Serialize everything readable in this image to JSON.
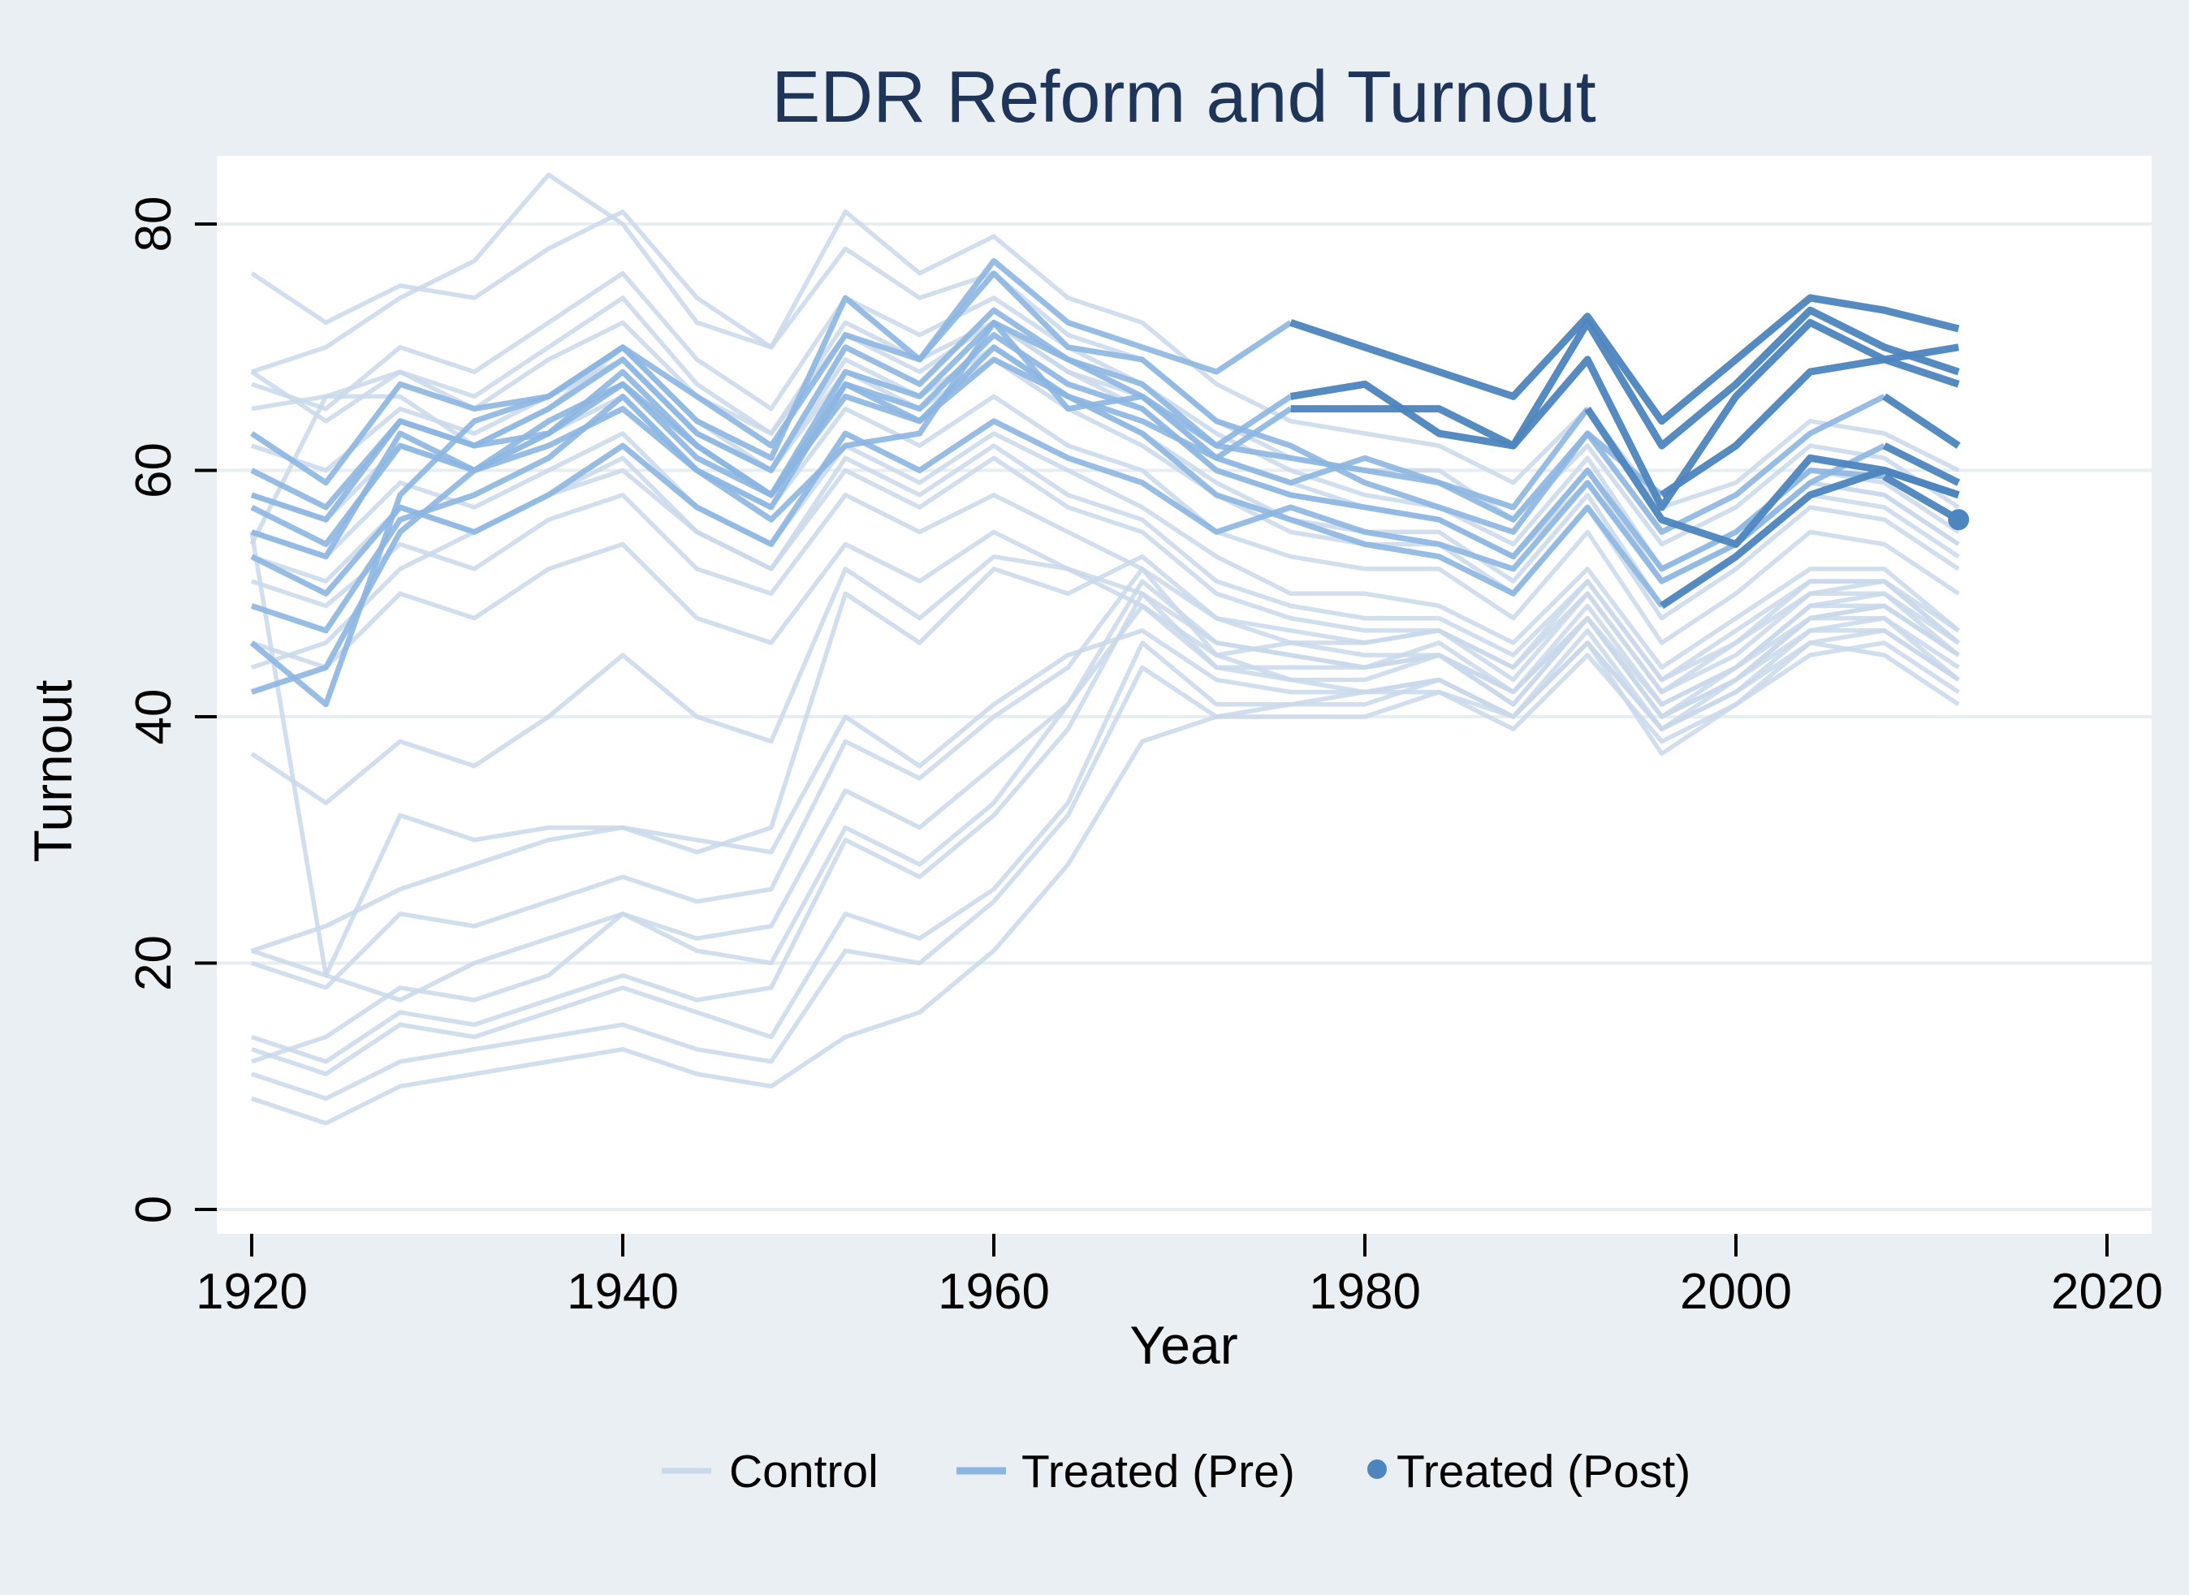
{
  "title": "EDR Reform and Turnout",
  "colors": {
    "background": "#e9eff3",
    "plot_background": "#ffffff",
    "gridline": "#e7eef2",
    "title_text": "#1f3459",
    "axis_text": "#000000",
    "control": "#c9d8ea",
    "treated_pre": "#8cb6e1",
    "treated_post": "#4d85be"
  },
  "legend": {
    "items": [
      {
        "label": "Control",
        "marker": "line",
        "color_key": "control"
      },
      {
        "label": "Treated (Pre)",
        "marker": "line",
        "color_key": "treated_pre"
      },
      {
        "label": "Treated (Post)",
        "marker": "dot",
        "color_key": "treated_post"
      }
    ]
  },
  "chart_data": {
    "type": "line",
    "title": "EDR Reform and Turnout",
    "xlabel": "Year",
    "ylabel": "Turnout",
    "xlim": [
      1918,
      2022
    ],
    "ylim": [
      0,
      85
    ],
    "xticks": [
      1920,
      1940,
      1960,
      1980,
      2000,
      2020
    ],
    "yticks": [
      0,
      20,
      40,
      60,
      80
    ],
    "grid": "horizontal",
    "legend_position": "bottom",
    "x": [
      1920,
      1924,
      1928,
      1932,
      1936,
      1940,
      1944,
      1948,
      1952,
      1956,
      1960,
      1964,
      1968,
      1972,
      1976,
      1980,
      1984,
      1988,
      1992,
      1996,
      2000,
      2004,
      2008,
      2012
    ],
    "series": [
      {
        "id": "control-01",
        "group": "control",
        "values": [
          68,
          70,
          74,
          77,
          84,
          80,
          72,
          70,
          81,
          76,
          79,
          74,
          72,
          67,
          64,
          63,
          62,
          59,
          65,
          57,
          59,
          64,
          63,
          60
        ]
      },
      {
        "id": "control-02",
        "group": "control",
        "values": [
          76,
          72,
          75,
          74,
          78,
          81,
          74,
          70,
          78,
          74,
          76,
          71,
          69,
          64,
          61,
          60,
          60,
          56,
          62,
          54,
          57,
          62,
          61,
          57
        ]
      },
      {
        "id": "control-03",
        "group": "control",
        "values": [
          67,
          65,
          70,
          68,
          72,
          76,
          69,
          65,
          74,
          71,
          74,
          70,
          67,
          63,
          60,
          58,
          57,
          54,
          61,
          52,
          55,
          60,
          59,
          55
        ]
      },
      {
        "id": "control-04",
        "group": "control",
        "values": [
          65,
          66,
          68,
          65,
          69,
          72,
          66,
          63,
          71,
          68,
          72,
          68,
          65,
          60,
          58,
          57,
          56,
          53,
          59,
          51,
          54,
          59,
          58,
          54
        ]
      },
      {
        "id": "control-05",
        "group": "control",
        "values": [
          62,
          60,
          65,
          63,
          66,
          69,
          63,
          60,
          68,
          65,
          69,
          65,
          62,
          58,
          55,
          54,
          54,
          50,
          57,
          48,
          52,
          57,
          56,
          52
        ]
      },
      {
        "id": "control-06",
        "group": "control",
        "values": [
          58,
          56,
          62,
          60,
          63,
          66,
          60,
          57,
          65,
          62,
          66,
          62,
          60,
          55,
          53,
          52,
          52,
          48,
          55,
          46,
          50,
          55,
          54,
          50
        ]
      },
      {
        "id": "control-07",
        "group": "control",
        "values": [
          55,
          53,
          59,
          57,
          60,
          63,
          57,
          54,
          62,
          59,
          63,
          60,
          57,
          53,
          50,
          50,
          49,
          46,
          52,
          44,
          48,
          52,
          52,
          47
        ]
      },
      {
        "id": "control-08",
        "group": "control",
        "values": [
          53,
          51,
          57,
          55,
          58,
          60,
          55,
          52,
          60,
          57,
          61,
          57,
          55,
          50,
          48,
          47,
          47,
          44,
          50,
          42,
          46,
          50,
          50,
          45
        ]
      },
      {
        "id": "control-09",
        "group": "control",
        "values": [
          51,
          49,
          54,
          52,
          56,
          58,
          52,
          50,
          58,
          55,
          58,
          55,
          52,
          48,
          46,
          45,
          45,
          42,
          48,
          40,
          44,
          48,
          48,
          43
        ]
      },
      {
        "id": "control-10",
        "group": "control",
        "values": [
          46,
          44,
          50,
          48,
          52,
          54,
          48,
          46,
          54,
          51,
          55,
          52,
          49,
          45,
          43,
          42,
          42,
          40,
          46,
          37,
          41,
          46,
          45,
          41
        ]
      },
      {
        "id": "control-11",
        "group": "control",
        "values": [
          37,
          33,
          38,
          36,
          40,
          45,
          40,
          38,
          52,
          48,
          53,
          52,
          50,
          46,
          45,
          44,
          45,
          42,
          48,
          41,
          44,
          49,
          49,
          45
        ]
      },
      {
        "id": "control-12",
        "group": "control",
        "values": [
          21,
          19,
          32,
          30,
          31,
          31,
          30,
          29,
          40,
          36,
          41,
          45,
          47,
          43,
          42,
          42,
          43,
          40,
          46,
          39,
          42,
          47,
          47,
          43
        ]
      },
      {
        "id": "control-13",
        "group": "control",
        "values": [
          20,
          18,
          24,
          23,
          25,
          27,
          25,
          26,
          38,
          35,
          40,
          44,
          52,
          45,
          46,
          46,
          47,
          43,
          50,
          42,
          45,
          50,
          51,
          47
        ]
      },
      {
        "id": "control-14",
        "group": "control",
        "values": [
          14,
          12,
          16,
          15,
          17,
          19,
          17,
          18,
          30,
          27,
          32,
          39,
          50,
          44,
          43,
          43,
          45,
          41,
          48,
          40,
          43,
          48,
          49,
          45
        ]
      },
      {
        "id": "control-15",
        "group": "control",
        "values": [
          13,
          11,
          15,
          14,
          16,
          18,
          16,
          14,
          24,
          22,
          26,
          33,
          46,
          41,
          41,
          41,
          43,
          40,
          46,
          39,
          42,
          46,
          47,
          43
        ]
      },
      {
        "id": "control-16",
        "group": "control",
        "values": [
          11,
          9,
          12,
          13,
          14,
          15,
          13,
          12,
          21,
          20,
          25,
          32,
          44,
          40,
          40,
          40,
          42,
          39,
          45,
          38,
          41,
          45,
          46,
          42
        ]
      },
      {
        "id": "control-17",
        "group": "control",
        "values": [
          9,
          7,
          10,
          11,
          12,
          13,
          11,
          10,
          14,
          16,
          21,
          28,
          38,
          40,
          41,
          42,
          43,
          40,
          47,
          39,
          43,
          47,
          48,
          44
        ]
      },
      {
        "id": "control-18",
        "group": "control",
        "values": [
          21,
          23,
          26,
          28,
          30,
          31,
          29,
          31,
          50,
          46,
          52,
          50,
          53,
          48,
          47,
          46,
          47,
          44,
          51,
          43,
          46,
          51,
          51,
          46
        ]
      },
      {
        "id": "control-19",
        "group": "control",
        "values": [
          12,
          14,
          18,
          17,
          19,
          24,
          21,
          20,
          31,
          28,
          33,
          41,
          51,
          46,
          45,
          44,
          46,
          42,
          49,
          41,
          44,
          49,
          50,
          46
        ]
      },
      {
        "id": "control-20",
        "group": "control",
        "values": [
          54,
          66,
          66,
          62,
          65,
          70,
          64,
          60,
          69,
          66,
          70,
          66,
          63,
          59,
          56,
          55,
          55,
          51,
          58,
          49,
          53,
          58,
          57,
          53
        ]
      },
      {
        "id": "control-21",
        "group": "control",
        "values": [
          44,
          46,
          52,
          55,
          58,
          61,
          55,
          52,
          61,
          58,
          62,
          58,
          56,
          51,
          49,
          48,
          48,
          45,
          51,
          43,
          47,
          51,
          51,
          46
        ]
      },
      {
        "id": "control-22",
        "group": "control",
        "values": [
          68,
          64,
          68,
          66,
          70,
          74,
          67,
          63,
          72,
          69,
          72,
          68,
          66,
          61,
          59,
          57,
          56,
          53,
          60,
          51,
          54,
          59,
          58,
          54
        ]
      },
      {
        "id": "control-23",
        "group": "control",
        "values": [
          55,
          19,
          17,
          20,
          22,
          24,
          22,
          23,
          34,
          31,
          36,
          41,
          49,
          44,
          44,
          44,
          45,
          41,
          48,
          40,
          43,
          48,
          49,
          45
        ]
      },
      {
        "id": "treated-1",
        "group": "treated",
        "reform_year": 1976,
        "post_start_index": 14,
        "values": [
          46,
          41,
          58,
          64,
          66,
          70,
          64,
          61,
          74,
          69,
          77,
          72,
          70,
          68,
          72,
          70,
          68,
          66,
          72.5,
          64,
          69,
          74,
          73,
          71.5
        ]
      },
      {
        "id": "treated-2",
        "group": "treated",
        "reform_year": 1976,
        "post_start_index": 14,
        "values": [
          42,
          44,
          55,
          60,
          63,
          68,
          62,
          58,
          68,
          66,
          72,
          69,
          66,
          62,
          66,
          67,
          63,
          62,
          69,
          57,
          66,
          72,
          69,
          70
        ]
      },
      {
        "id": "treated-3",
        "group": "treated",
        "reform_year": 1976,
        "post_start_index": 14,
        "values": [
          55,
          53,
          63,
          60,
          62,
          65,
          60,
          56,
          62,
          63,
          72,
          65,
          66,
          61,
          65,
          65,
          65,
          62,
          72,
          62,
          67,
          73,
          70,
          68
        ]
      },
      {
        "id": "treated-4",
        "group": "treated",
        "reform_year": 1996,
        "post_start_index": 19,
        "values": [
          63,
          59,
          67,
          65,
          66,
          70,
          66,
          62,
          71,
          69,
          76,
          70,
          69,
          64,
          62,
          59,
          57,
          55,
          63,
          58,
          62,
          68,
          69,
          67
        ]
      },
      {
        "id": "treated-5",
        "group": "treated",
        "reform_year": 1992,
        "post_start_index": 18,
        "values": [
          58,
          56,
          64,
          62,
          63,
          67,
          61,
          58,
          66,
          64,
          70,
          66,
          64,
          61,
          59,
          61,
          59,
          57,
          65,
          56,
          54,
          61,
          60,
          58
        ]
      },
      {
        "id": "treated-6",
        "group": "treated",
        "reform_year": 2008,
        "post_start_index": 22,
        "values": [
          53,
          50,
          57,
          55,
          58,
          62,
          57,
          54,
          63,
          60,
          64,
          61,
          59,
          55,
          57,
          55,
          54,
          52,
          59,
          51,
          54,
          59,
          62,
          59
        ]
      },
      {
        "id": "treated-7",
        "group": "treated",
        "reform_year": 2008,
        "post_start_index": 22,
        "values": [
          60,
          57,
          64,
          62,
          65,
          69,
          63,
          60,
          70,
          67,
          73,
          69,
          67,
          62,
          61,
          60,
          59,
          56,
          63,
          55,
          58,
          63,
          66,
          62
        ]
      },
      {
        "id": "treated-8",
        "group": "treated",
        "reform_year": 2008,
        "post_start_index": 22,
        "marker_at_end": true,
        "values": [
          57,
          54,
          62,
          60,
          64,
          67,
          62,
          58,
          67,
          65,
          71,
          67,
          65,
          60,
          58,
          57,
          56,
          53,
          60,
          52,
          55,
          60,
          59.5,
          56
        ]
      },
      {
        "id": "treated-9",
        "group": "treated",
        "reform_year": 1996,
        "post_start_index": 19,
        "values": [
          49,
          47,
          56,
          58,
          61,
          66,
          60,
          57,
          67,
          64,
          69,
          66,
          63,
          58,
          56,
          54,
          53,
          50,
          57,
          49,
          53,
          58,
          60,
          58
        ]
      }
    ]
  }
}
